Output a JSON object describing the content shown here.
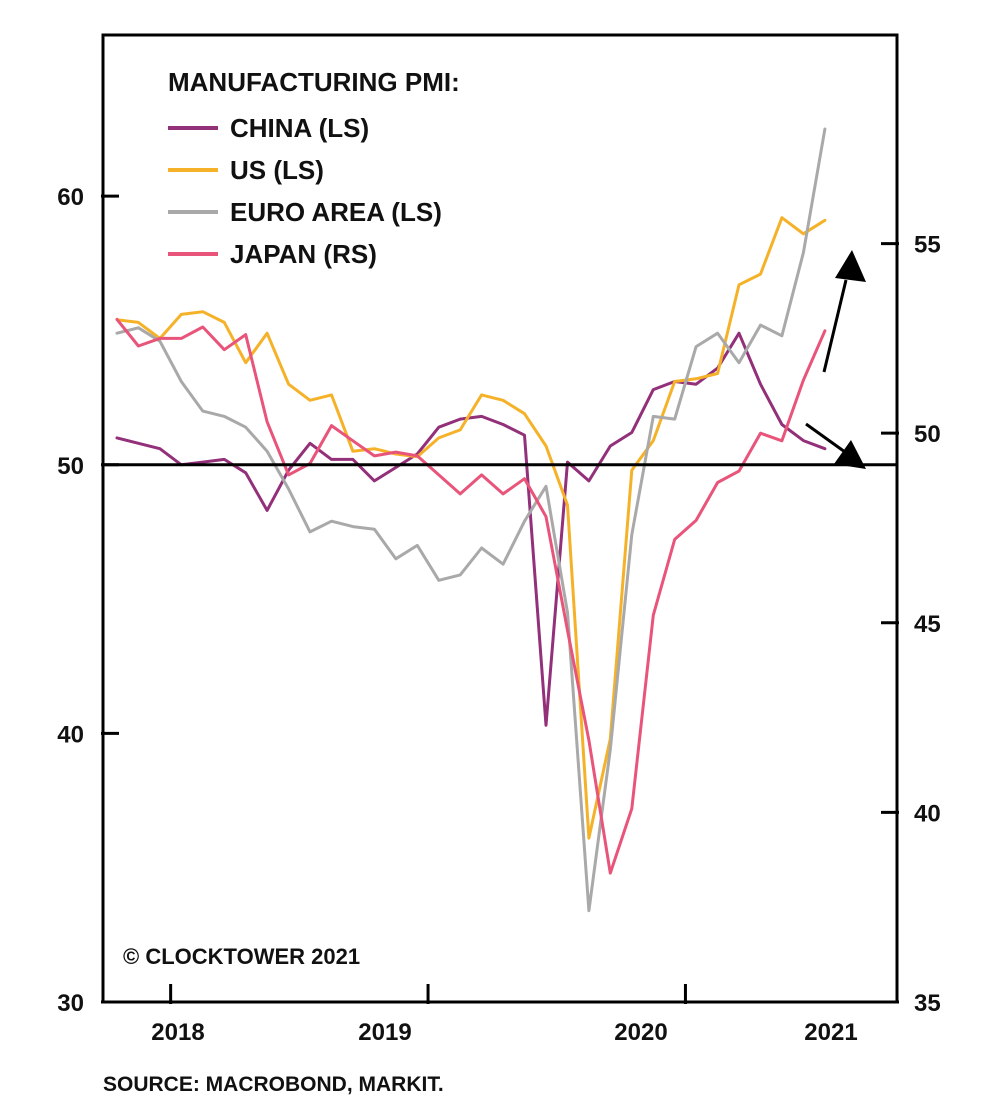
{
  "chart_data": {
    "type": "line",
    "legend_title": "MANUFACTURING PMI:",
    "credit": "© CLOCKTOWER 2021",
    "source": "SOURCE: MACROBOND, MARKIT.",
    "x_tick_labels": [
      "2018",
      "2019",
      "2020",
      "2021"
    ],
    "left_axis": {
      "ylim": [
        30,
        66
      ],
      "ticks": [
        30,
        40,
        50,
        60
      ]
    },
    "right_axis": {
      "ylim": [
        35,
        60.5
      ],
      "ticks": [
        35,
        40,
        45,
        50,
        55
      ]
    },
    "reference_line": 50,
    "legend_placement": "top-left",
    "x_start": "2017-10",
    "series": [
      {
        "name": "CHINA (LS)",
        "axis": "left",
        "color": "#93307a",
        "values": [
          51.0,
          50.8,
          50.6,
          50.0,
          50.1,
          50.2,
          49.7,
          48.3,
          49.8,
          50.8,
          50.2,
          50.2,
          49.4,
          49.9,
          50.4,
          51.4,
          51.7,
          51.8,
          51.5,
          51.1,
          40.3,
          50.1,
          49.4,
          50.7,
          51.2,
          52.8,
          53.1,
          53.0,
          53.6,
          54.9,
          53.0,
          51.5,
          50.9,
          50.6
        ]
      },
      {
        "name": "US (LS)",
        "axis": "left",
        "color": "#f5b229",
        "values": [
          55.4,
          55.3,
          54.7,
          55.6,
          55.7,
          55.3,
          53.8,
          54.9,
          53.0,
          52.4,
          52.6,
          50.5,
          50.6,
          50.4,
          50.3,
          51.0,
          51.3,
          52.6,
          52.4,
          51.9,
          50.7,
          48.5,
          36.1,
          39.8,
          49.8,
          50.9,
          53.1,
          53.2,
          53.4,
          56.7,
          57.1,
          59.2,
          58.6,
          59.1
        ]
      },
      {
        "name": "EURO AREA (LS)",
        "axis": "left",
        "color": "#a9a9a9",
        "values": [
          54.9,
          55.1,
          54.6,
          53.1,
          52.0,
          51.8,
          51.4,
          50.5,
          49.1,
          47.5,
          47.9,
          47.7,
          47.6,
          46.5,
          47.0,
          45.7,
          45.9,
          46.9,
          46.3,
          47.9,
          49.2,
          44.5,
          33.4,
          39.4,
          47.4,
          51.8,
          51.7,
          54.4,
          54.9,
          53.8,
          55.2,
          54.8,
          57.9,
          62.5
        ]
      },
      {
        "name": "JAPAN (RS)",
        "axis": "right",
        "color": "#e8547a",
        "values": [
          53.0,
          52.3,
          52.5,
          52.5,
          52.8,
          52.2,
          52.6,
          50.3,
          48.9,
          49.2,
          50.2,
          49.8,
          49.4,
          49.5,
          49.4,
          48.9,
          48.4,
          48.9,
          48.4,
          48.8,
          47.8,
          44.8,
          41.9,
          38.4,
          40.1,
          45.2,
          47.2,
          47.7,
          48.7,
          49.0,
          50.0,
          49.8,
          51.4,
          52.7
        ]
      }
    ]
  }
}
